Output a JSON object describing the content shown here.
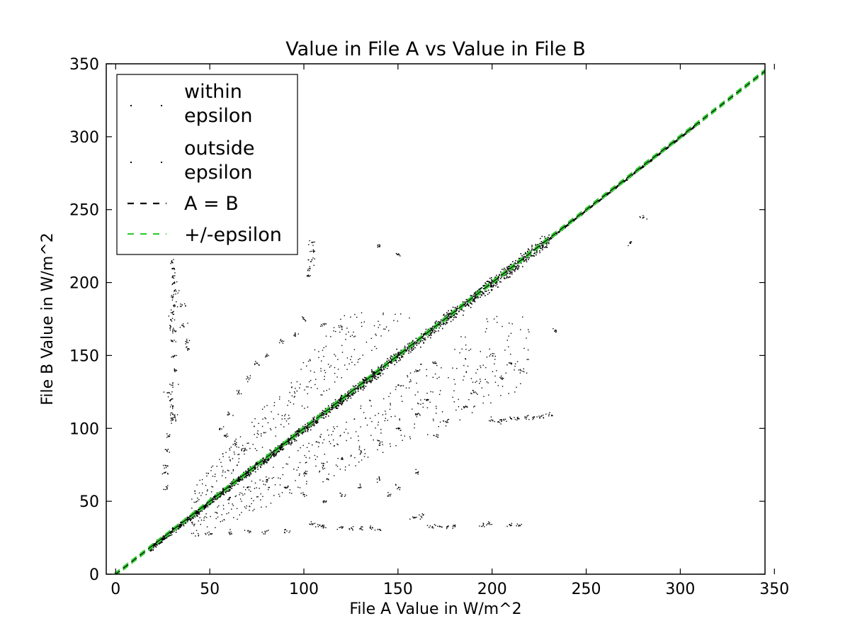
{
  "chart_data": {
    "type": "scatter",
    "title": "Value in File A vs Value in File B",
    "xlabel": "File A Value in W/m^2",
    "ylabel": "File B Value in W/m^2",
    "xlim": [
      -5,
      345
    ],
    "ylim": [
      0,
      350
    ],
    "xticks": [
      "0",
      "50",
      "100",
      "150",
      "200",
      "250",
      "300",
      "350"
    ],
    "yticks": [
      "0",
      "50",
      "100",
      "150",
      "200",
      "250",
      "300",
      "350"
    ],
    "grid": false,
    "legend_position": "top-left",
    "legend": [
      {
        "line1": "within",
        "line2": "epsilon",
        "marker": "dot",
        "color": "#000000"
      },
      {
        "line1": "outside",
        "line2": "epsilon",
        "marker": "dot",
        "color": "#000000"
      },
      {
        "line1": "A = B",
        "line2": "",
        "marker": "dashed",
        "color": "#000000"
      },
      {
        "line1": "+/-epsilon",
        "line2": "",
        "marker": "dashed",
        "color": "#33cc33"
      }
    ],
    "series": [
      {
        "name": "within epsilon",
        "color": "#000000",
        "description": "dense band along the A = B diagonal from roughly 18 to 310"
      },
      {
        "name": "outside epsilon",
        "color": "#000000",
        "points": [
          [
            30,
            214
          ],
          [
            30,
            210
          ],
          [
            31,
            205
          ],
          [
            31,
            200
          ],
          [
            31,
            195
          ],
          [
            30,
            190
          ],
          [
            31,
            185
          ],
          [
            30,
            180
          ],
          [
            29,
            175
          ],
          [
            29,
            170
          ],
          [
            30,
            167
          ],
          [
            30,
            160
          ],
          [
            31,
            150
          ],
          [
            31,
            140
          ],
          [
            30,
            130
          ],
          [
            28,
            125
          ],
          [
            29,
            120
          ],
          [
            30,
            115
          ],
          [
            30,
            110
          ],
          [
            31,
            108
          ],
          [
            30,
            106
          ],
          [
            28,
            95
          ],
          [
            27,
            85
          ],
          [
            26,
            75
          ],
          [
            26,
            70
          ],
          [
            27,
            60
          ],
          [
            35,
            185
          ],
          [
            36,
            170
          ],
          [
            37,
            160
          ],
          [
            38,
            155
          ],
          [
            104,
            228
          ],
          [
            105,
            222
          ],
          [
            104,
            216
          ],
          [
            103,
            210
          ],
          [
            102,
            205
          ],
          [
            140,
            225
          ],
          [
            150,
            220
          ],
          [
            273,
            228
          ],
          [
            280,
            245
          ],
          [
            233,
            167
          ],
          [
            200,
            106
          ],
          [
            203,
            105
          ],
          [
            206,
            106
          ],
          [
            210,
            107
          ],
          [
            214,
            107
          ],
          [
            218,
            108
          ],
          [
            222,
            108
          ],
          [
            226,
            109
          ],
          [
            230,
            110
          ],
          [
            158,
            39
          ],
          [
            162,
            40
          ],
          [
            168,
            33
          ],
          [
            172,
            33
          ],
          [
            176,
            33
          ],
          [
            180,
            33
          ],
          [
            195,
            34
          ],
          [
            198,
            35
          ],
          [
            210,
            34
          ],
          [
            214,
            34
          ],
          [
            104,
            35
          ],
          [
            108,
            34
          ],
          [
            110,
            33
          ],
          [
            120,
            32
          ],
          [
            125,
            32
          ],
          [
            130,
            32
          ],
          [
            135,
            32
          ],
          [
            140,
            31
          ],
          [
            50,
            28
          ],
          [
            60,
            29
          ],
          [
            70,
            30
          ],
          [
            80,
            30
          ],
          [
            90,
            31
          ],
          [
            100,
            175
          ],
          [
            110,
            172
          ],
          [
            120,
            170
          ],
          [
            95,
            165
          ],
          [
            88,
            160
          ],
          [
            80,
            150
          ],
          [
            75,
            145
          ],
          [
            70,
            135
          ],
          [
            65,
            125
          ],
          [
            60,
            110
          ],
          [
            55,
            100
          ],
          [
            58,
            95
          ],
          [
            63,
            90
          ],
          [
            68,
            85
          ],
          [
            100,
            70
          ],
          [
            110,
            75
          ],
          [
            120,
            80
          ],
          [
            130,
            85
          ],
          [
            140,
            90
          ],
          [
            150,
            100
          ],
          [
            160,
            110
          ],
          [
            165,
            120
          ],
          [
            150,
            130
          ],
          [
            160,
            140
          ],
          [
            170,
            145
          ],
          [
            145,
            55
          ],
          [
            150,
            60
          ],
          [
            160,
            70
          ],
          [
            140,
            65
          ],
          [
            130,
            60
          ],
          [
            120,
            55
          ],
          [
            110,
            50
          ],
          [
            100,
            55
          ],
          [
            90,
            60
          ],
          [
            80,
            65
          ],
          [
            70,
            60
          ],
          [
            60,
            52
          ],
          [
            200,
            150
          ],
          [
            210,
            145
          ],
          [
            215,
            140
          ],
          [
            205,
            135
          ],
          [
            190,
            125
          ],
          [
            185,
            115
          ],
          [
            175,
            105
          ],
          [
            170,
            95
          ]
        ]
      }
    ],
    "lines": [
      {
        "name": "A = B",
        "style": "dashed",
        "color": "#000000",
        "x": [
          -5,
          345
        ],
        "y": [
          -5,
          345
        ]
      },
      {
        "name": "+/-epsilon upper",
        "style": "dashed",
        "color": "#33cc33",
        "x": [
          -5,
          345
        ],
        "y": [
          -4,
          346
        ]
      },
      {
        "name": "+/-epsilon lower",
        "style": "dashed",
        "color": "#33cc33",
        "x": [
          -5,
          345
        ],
        "y": [
          -6,
          344
        ]
      }
    ]
  }
}
